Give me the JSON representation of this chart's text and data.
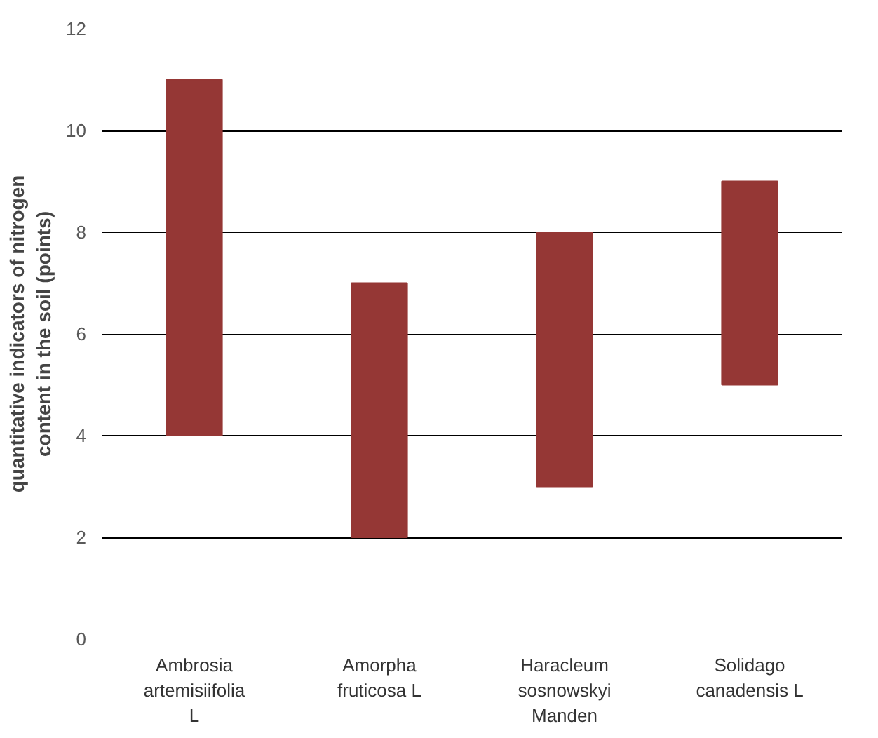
{
  "chart_data": {
    "type": "bar",
    "ylabel": "quantitative indicators of nitrogen\ncontent in the soil (points)",
    "categories": [
      "Ambrosia\nartemisiifolia\nL",
      "Amorpha\nfruticosa L",
      "Haracleum\nsosnowskyi\nManden",
      "Solidago\ncanadensis L"
    ],
    "base": [
      4,
      2,
      3,
      5
    ],
    "values": [
      7,
      5,
      5,
      4
    ],
    "color": "#953735",
    "ylim": [
      0,
      12
    ],
    "yticks": [
      0,
      2,
      4,
      6,
      8,
      10,
      12
    ],
    "grid": "y"
  }
}
